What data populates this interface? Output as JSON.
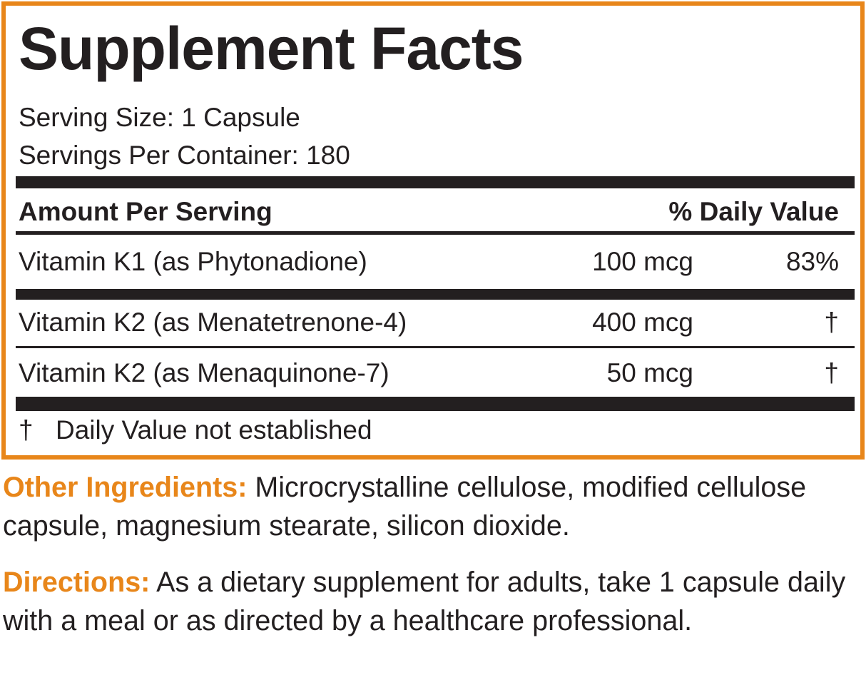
{
  "title": "Supplement Facts",
  "serving_size": "Serving Size: 1 Capsule",
  "servings_per_container": "Servings Per Container: 180",
  "header": {
    "amount": "Amount Per Serving",
    "daily_value": "% Daily Value"
  },
  "rows": [
    [
      "Vitamin K1 (as Phytonadione)",
      "100 mcg",
      "83%"
    ],
    [
      "Vitamin K2 (as Menatetrenone-4)",
      "400 mcg",
      "†"
    ],
    [
      "Vitamin K2 (as Menaquinone-7)",
      "50 mcg",
      "†"
    ]
  ],
  "footnote": {
    "symbol": "†",
    "text": "Daily Value not established"
  },
  "other_ingredients": {
    "label": "Other Ingredients:",
    "text": "Microcrystalline cellulose, modified cellulose capsule, magnesium stearate, silicon dioxide."
  },
  "directions": {
    "label": "Directions:",
    "text": "As a dietary supplement for adults, take 1 capsule daily with a meal or as directed by a healthcare professional."
  }
}
